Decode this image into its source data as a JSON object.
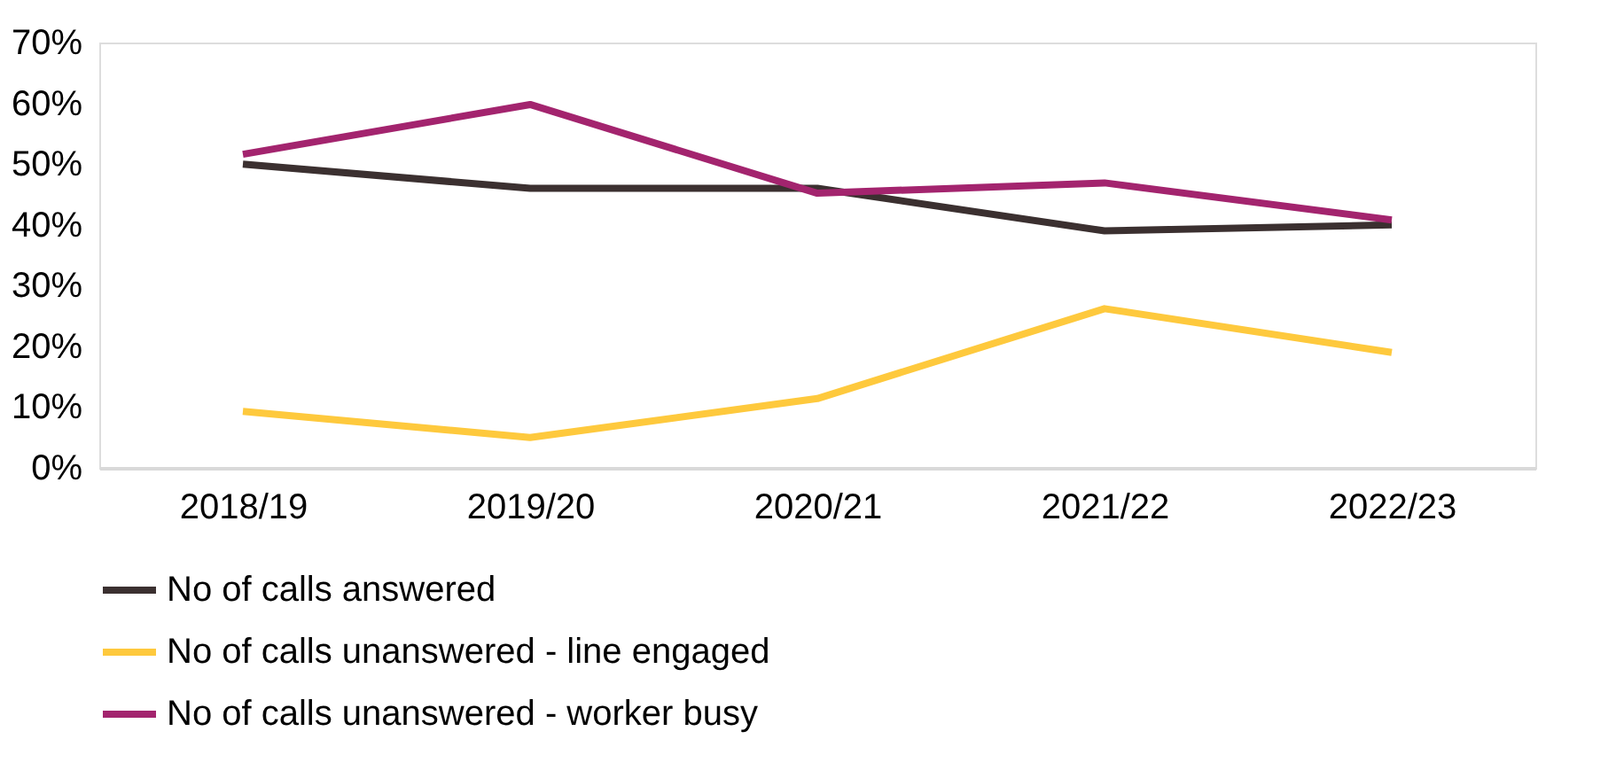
{
  "chart_data": {
    "type": "line",
    "categories": [
      "2018/19",
      "2019/20",
      "2020/21",
      "2021/22",
      "2022/23"
    ],
    "series": [
      {
        "name": "No of calls answered",
        "color": "#3b3030",
        "values": [
          0.5,
          0.46,
          0.46,
          0.39,
          0.4
        ]
      },
      {
        "name": "No of calls unanswered - line engaged",
        "color": "#fec93d",
        "values": [
          0.093,
          0.05,
          0.114,
          0.262,
          0.19
        ]
      },
      {
        "name": "No of calls unanswered - worker busy",
        "color": "#a3246e",
        "values": [
          0.516,
          0.598,
          0.452,
          0.469,
          0.408
        ]
      }
    ],
    "ylim": [
      0,
      0.7
    ],
    "yticks": [
      {
        "value": 0,
        "label": "0%"
      },
      {
        "value": 0.1,
        "label": "10%"
      },
      {
        "value": 0.2,
        "label": "20%"
      },
      {
        "value": 0.3,
        "label": "30%"
      },
      {
        "value": 0.4,
        "label": "40%"
      },
      {
        "value": 0.5,
        "label": "50%"
      },
      {
        "value": 0.6,
        "label": "60%"
      },
      {
        "value": 0.7,
        "label": "70%"
      }
    ],
    "grid": false,
    "legend": "bottom",
    "marker": "none",
    "line_style": "solid"
  }
}
